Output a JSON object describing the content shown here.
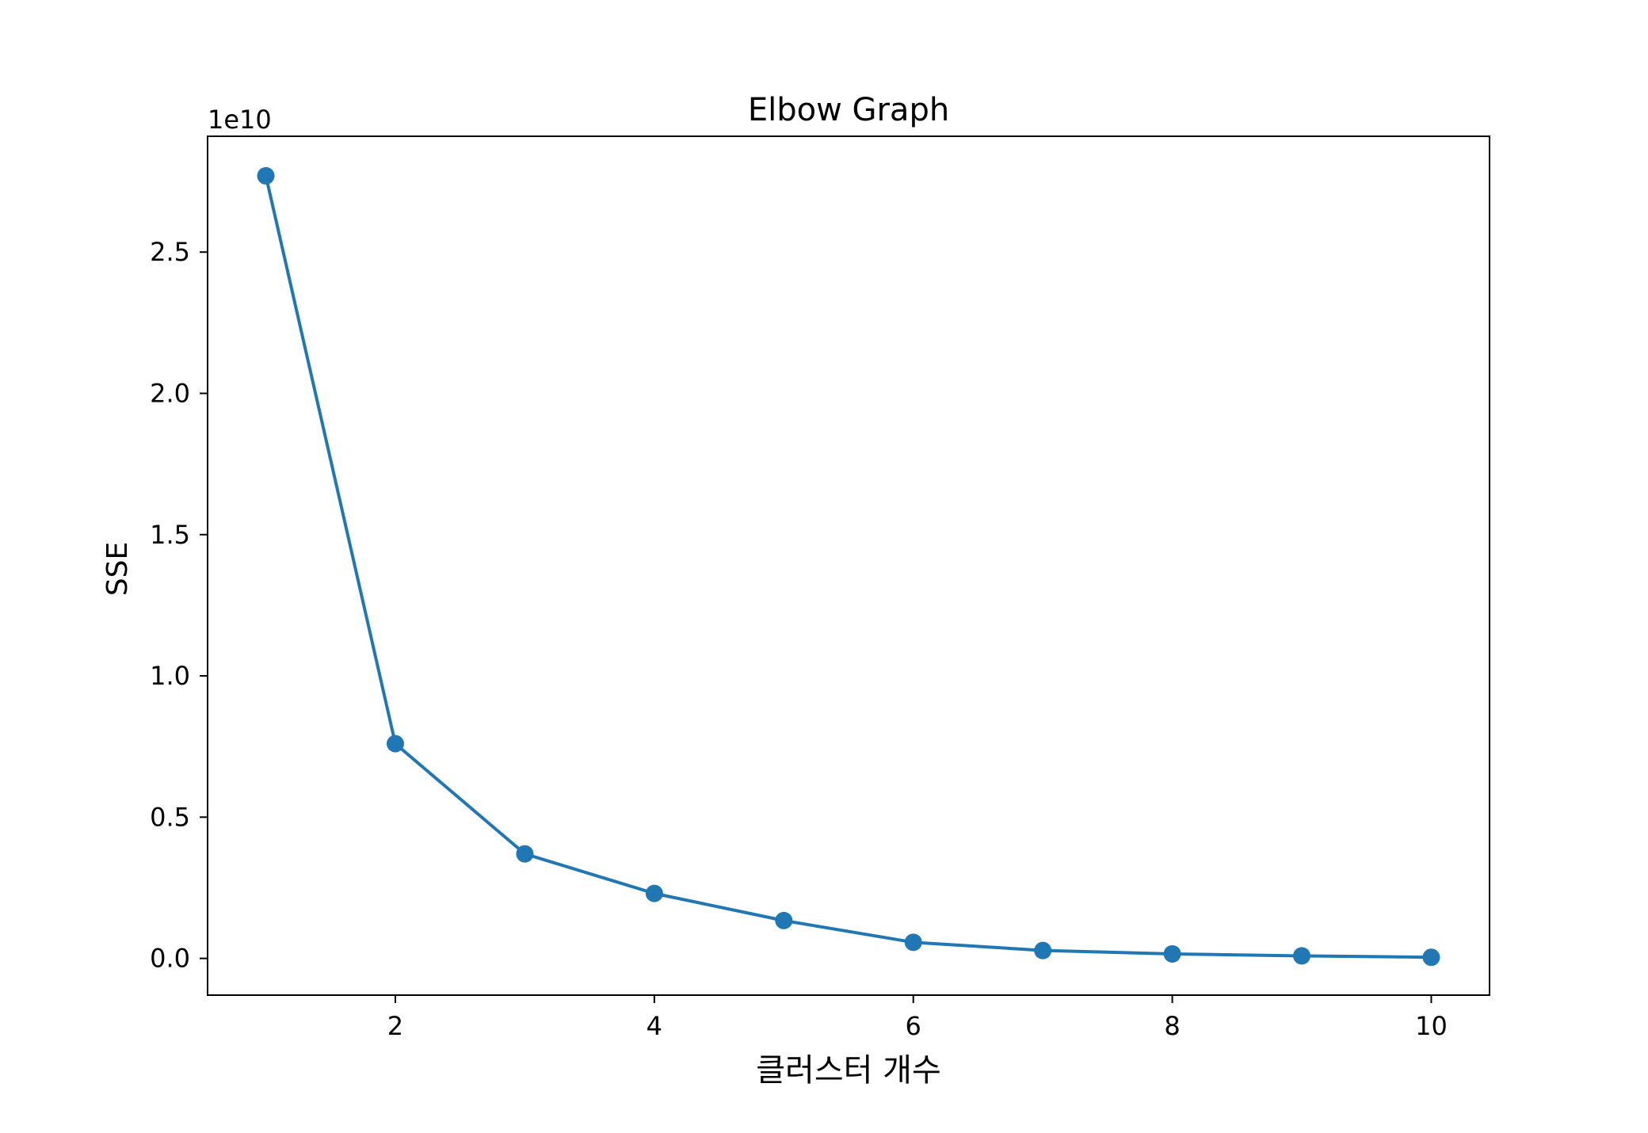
{
  "chart_data": {
    "type": "line",
    "title": "Elbow Graph",
    "xlabel": "클러스터 개수",
    "ylabel": "SSE",
    "y_offset_label": "1e10",
    "x": [
      1,
      2,
      3,
      4,
      5,
      6,
      7,
      8,
      9,
      10
    ],
    "series": [
      {
        "values": [
          2.77,
          0.76,
          0.37,
          0.23,
          0.134,
          0.057,
          0.028,
          0.016,
          0.009,
          0.004
        ],
        "color": "#1f77b4",
        "marker": "circle"
      }
    ],
    "xlim": [
      0.55,
      10.45
    ],
    "ylim": [
      -0.13,
      2.91
    ],
    "xticks": [
      2,
      4,
      6,
      8,
      10
    ],
    "xtick_labels": [
      "2",
      "4",
      "6",
      "8",
      "10"
    ],
    "yticks": [
      0.0,
      0.5,
      1.0,
      1.5,
      2.0,
      2.5
    ],
    "ytick_labels": [
      "0.0",
      "0.5",
      "1.0",
      "1.5",
      "2.0",
      "2.5"
    ],
    "grid": false,
    "legend": "none"
  }
}
